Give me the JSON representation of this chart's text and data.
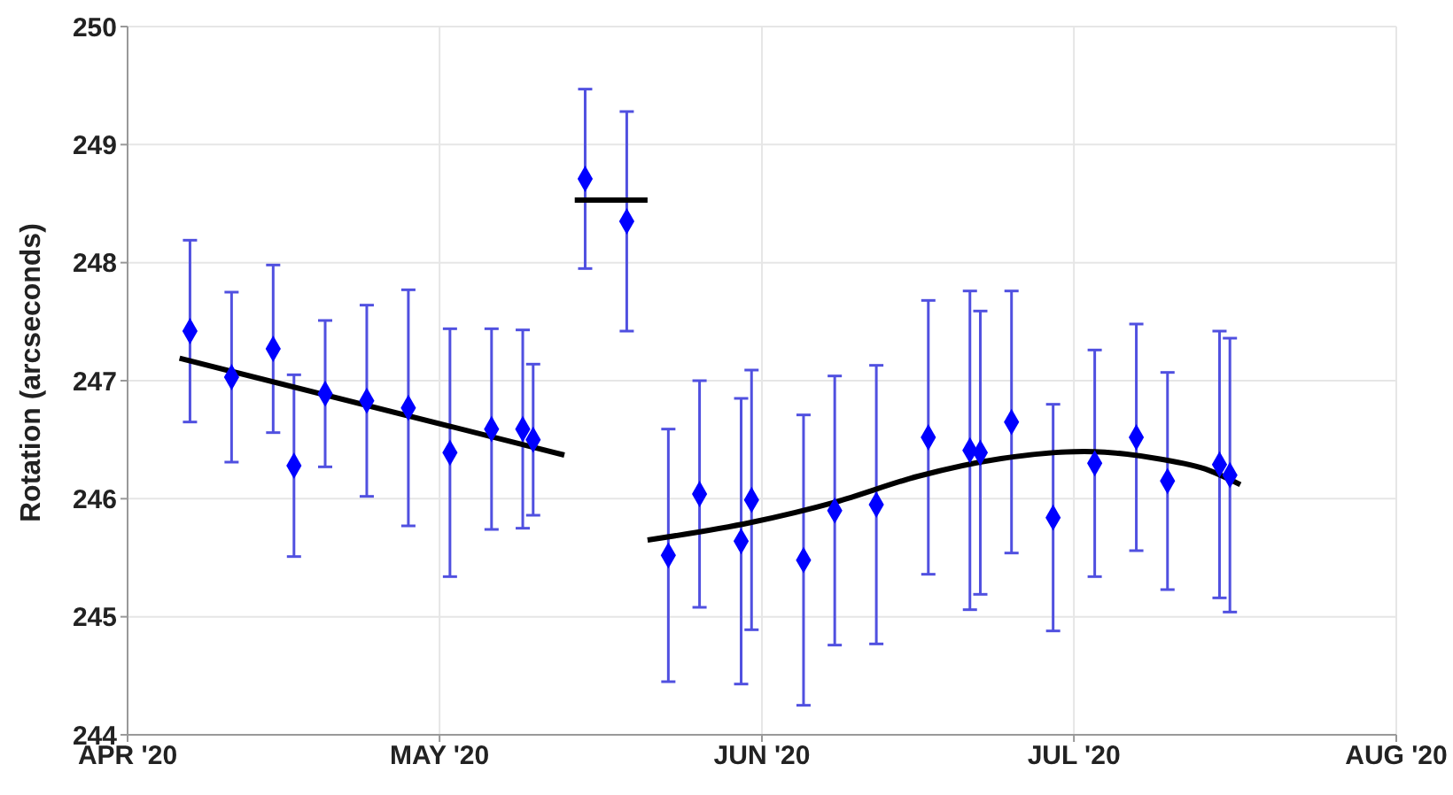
{
  "chart_data": {
    "type": "scatter",
    "ylabel": "Rotation (arcseconds)",
    "xlim": [
      "2020-04-01",
      "2020-08-01"
    ],
    "xticks": [
      {
        "value": "2020-04-01",
        "label": "APR '20"
      },
      {
        "value": "2020-05-01",
        "label": "MAY '20"
      },
      {
        "value": "2020-06-01",
        "label": "JUN '20"
      },
      {
        "value": "2020-07-01",
        "label": "JUL '20"
      },
      {
        "value": "2020-08-01",
        "label": "AUG '20"
      }
    ],
    "ylim": [
      244,
      250
    ],
    "yticks": [
      244,
      245,
      246,
      247,
      248,
      249,
      250
    ],
    "grid": true,
    "series": [
      {
        "marker": "diamond",
        "color": "#0000ff",
        "x": [
          "2020-04-07",
          "2020-04-11",
          "2020-04-15",
          "2020-04-17",
          "2020-04-20",
          "2020-04-24",
          "2020-04-28",
          "2020-05-02",
          "2020-05-06",
          "2020-05-09",
          "2020-05-10",
          "2020-05-15",
          "2020-05-19",
          "2020-05-23",
          "2020-05-26",
          "2020-05-30",
          "2020-05-31",
          "2020-06-05",
          "2020-06-08",
          "2020-06-12",
          "2020-06-17",
          "2020-06-21",
          "2020-06-22",
          "2020-06-25",
          "2020-06-29",
          "2020-07-03",
          "2020-07-07",
          "2020-07-10",
          "2020-07-15",
          "2020-07-16"
        ],
        "values": [
          247.42,
          247.03,
          247.27,
          246.28,
          246.89,
          246.83,
          246.77,
          246.39,
          246.59,
          246.59,
          246.5,
          248.71,
          248.35,
          245.52,
          246.04,
          245.64,
          245.99,
          245.48,
          245.9,
          245.95,
          246.52,
          246.41,
          246.39,
          246.65,
          245.84,
          246.3,
          246.52,
          246.15,
          246.29,
          246.2
        ],
        "errors": [
          0.77,
          0.72,
          0.71,
          0.77,
          0.62,
          0.81,
          1.0,
          1.05,
          0.85,
          0.84,
          0.64,
          0.76,
          0.93,
          1.07,
          0.96,
          1.21,
          1.1,
          1.23,
          1.14,
          1.18,
          1.16,
          1.35,
          1.2,
          1.11,
          0.96,
          0.96,
          0.96,
          0.92,
          1.13,
          1.16
        ]
      },
      {
        "type": "line",
        "color": "#000000",
        "x": [
          "2020-04-06",
          "2020-05-13"
        ],
        "values": [
          247.19,
          246.37
        ]
      },
      {
        "type": "line",
        "color": "#000000",
        "x": [
          "2020-05-14",
          "2020-05-21"
        ],
        "values": [
          248.53,
          248.53
        ]
      },
      {
        "type": "line",
        "color": "#000000",
        "x": [
          "2020-05-21",
          "2020-05-31",
          "2020-06-08",
          "2020-06-16",
          "2020-06-24",
          "2020-07-02",
          "2020-07-09",
          "2020-07-14",
          "2020-07-17"
        ],
        "values": [
          245.65,
          245.8,
          245.97,
          246.19,
          246.34,
          246.4,
          246.34,
          246.24,
          246.12
        ]
      }
    ]
  }
}
